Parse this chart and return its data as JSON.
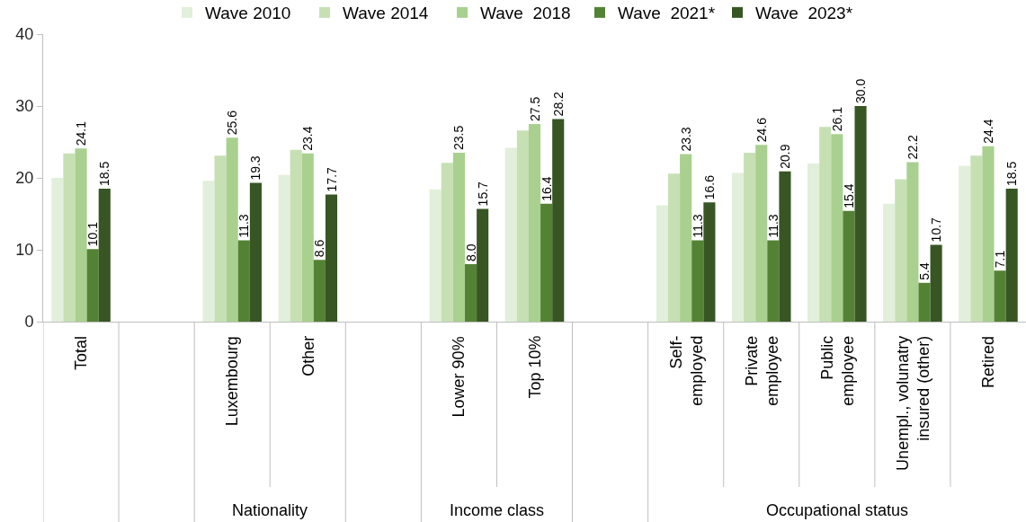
{
  "chart_data": {
    "type": "bar",
    "categories": [
      "Total",
      null,
      "Luxembourg",
      "Other",
      null,
      "Lower 90%",
      "Top 10%",
      null,
      "Self-employed",
      "Private employee",
      "Public employee",
      "Unempl., volunatry insured (other)",
      "Retired"
    ],
    "series": [
      {
        "name": "Wave 2010",
        "color": "#e2efda",
        "values": [
          20.0,
          null,
          19.6,
          20.4,
          null,
          18.4,
          24.2,
          null,
          16.2,
          20.7,
          22.0,
          16.4,
          21.7
        ]
      },
      {
        "name": "Wave 2014",
        "color": "#c6e0b4",
        "values": [
          23.4,
          null,
          23.1,
          23.9,
          null,
          22.1,
          26.6,
          null,
          20.6,
          23.5,
          27.1,
          19.8,
          23.1
        ]
      },
      {
        "name": "Wave  2018",
        "color": "#a9d08e",
        "values": [
          24.1,
          null,
          25.6,
          23.4,
          null,
          23.5,
          27.5,
          null,
          23.3,
          24.6,
          26.1,
          22.2,
          24.4
        ],
        "value_labels": [
          "24.1",
          null,
          "25.6",
          "23.4",
          null,
          "23.5",
          "27.5",
          null,
          "23.3",
          "24.6",
          "26.1",
          "22.2",
          "24.4"
        ]
      },
      {
        "name": "Wave  2021*",
        "color": "#548235",
        "values": [
          10.1,
          null,
          11.3,
          8.6,
          null,
          8.0,
          16.4,
          null,
          11.3,
          11.3,
          15.4,
          5.4,
          7.1
        ],
        "value_labels": [
          "10.1",
          null,
          "11.3",
          "8.6",
          null,
          "8.0",
          "16.4",
          null,
          "11.3",
          "11.3",
          "15.4",
          "5.4",
          "7.1"
        ]
      },
      {
        "name": "Wave  2023*",
        "color": "#375623",
        "values": [
          18.5,
          null,
          19.3,
          17.7,
          null,
          15.7,
          28.2,
          null,
          16.6,
          20.9,
          30.0,
          10.7,
          18.5
        ],
        "value_labels": [
          "18.5",
          null,
          "19.3",
          "17.7",
          null,
          "15.7",
          "28.2",
          null,
          "16.6",
          "20.9",
          "30.0",
          "10.7",
          "18.5"
        ]
      }
    ],
    "ylim": [
      0,
      40
    ],
    "yticks": [
      0,
      10,
      20,
      30,
      40
    ],
    "grid": false,
    "legend": "top",
    "annotations": [
      "Nationality",
      "Income class",
      "Occupational status"
    ]
  }
}
